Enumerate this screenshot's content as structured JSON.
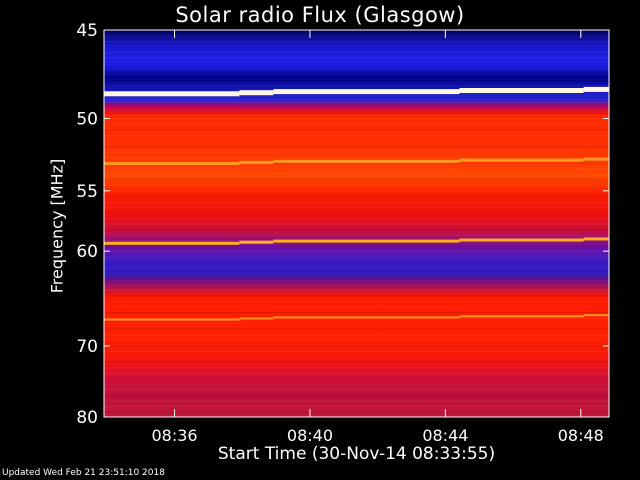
{
  "chart_data": {
    "type": "heatmap",
    "title": "Solar radio Flux (Glasgow)",
    "ylabel": "Frequency [MHz]",
    "xlabel": "Start Time (30-Nov-14 08:33:55)",
    "y_ticks": [
      "45",
      "50",
      "55",
      "60",
      "70",
      "80"
    ],
    "x_ticks": [
      "08:36",
      "08:40",
      "08:44",
      "08:48"
    ],
    "y_scale": "reciprocal",
    "ylim": [
      45,
      80
    ],
    "xlim": [
      "08:33:55",
      "08:48:50"
    ],
    "grid": false,
    "colors": {
      "low": "#0000a0",
      "mid": "#ff1a00",
      "high": "#ffffd0"
    },
    "bright_bands_mhz": [
      48.5,
      53.0,
      59.3,
      66.9
    ],
    "time_steps": [
      "08:37:55",
      "08:38:55",
      "08:44:25",
      "08:48:05"
    ]
  },
  "footer": {
    "updated": "Updated Wed Feb 21 23:51:10 2018"
  }
}
